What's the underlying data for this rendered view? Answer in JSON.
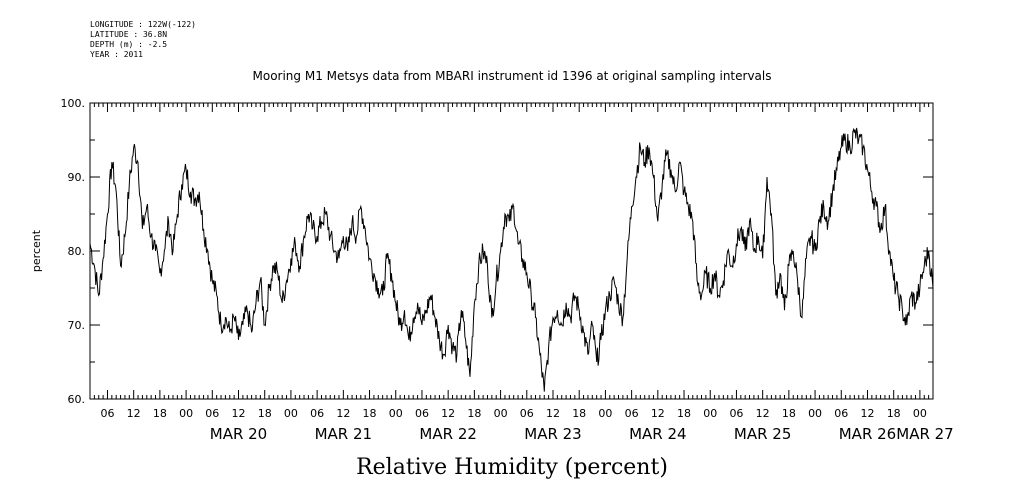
{
  "meta": {
    "longitude": "LONGITUDE : 122W(-122)",
    "latitude": "LATITUDE : 36.8N",
    "depth": "DEPTH (m) : -2.5",
    "year": "YEAR : 2011"
  },
  "chart_data": {
    "type": "line",
    "title": "Mooring M1 Metsys data from MBARI instrument id 1396 at original sampling intervals",
    "xlabel": "Relative Humidity (percent)",
    "ylabel": "percent",
    "ylim": [
      60,
      100
    ],
    "yticks": [
      "60.",
      "70.",
      "80.",
      "90.",
      "100."
    ],
    "xlim": [
      "2011-03-19T02:00",
      "2011-03-27T03:00"
    ],
    "hour_ticks": [
      "06",
      "12",
      "18",
      "00",
      "06",
      "12",
      "18",
      "00",
      "06",
      "12",
      "18",
      "00",
      "06",
      "12",
      "18",
      "00",
      "06",
      "12",
      "18",
      "00",
      "06",
      "12",
      "18",
      "00",
      "06",
      "12",
      "18",
      "00",
      "06",
      "12",
      "18",
      "00"
    ],
    "date_labels": [
      "MAR 20",
      "MAR 21",
      "MAR 22",
      "MAR 23",
      "MAR 24",
      "MAR 25",
      "MAR 26",
      "MAR 27"
    ],
    "grid": false,
    "series": [
      {
        "values": [
          [
            "2011-03-19T02:00",
            81
          ],
          [
            "2011-03-19T03:00",
            78
          ],
          [
            "2011-03-19T04:00",
            74
          ],
          [
            "2011-03-19T05:00",
            79
          ],
          [
            "2011-03-19T06:00",
            85
          ],
          [
            "2011-03-19T07:00",
            92
          ],
          [
            "2011-03-19T08:00",
            88
          ],
          [
            "2011-03-19T09:00",
            78
          ],
          [
            "2011-03-19T10:00",
            82
          ],
          [
            "2011-03-19T11:00",
            89
          ],
          [
            "2011-03-19T12:00",
            94
          ],
          [
            "2011-03-19T13:00",
            92
          ],
          [
            "2011-03-19T14:00",
            83
          ],
          [
            "2011-03-19T15:00",
            86
          ],
          [
            "2011-03-19T16:00",
            82
          ],
          [
            "2011-03-19T17:00",
            80
          ],
          [
            "2011-03-19T18:00",
            77
          ],
          [
            "2011-03-19T19:00",
            80
          ],
          [
            "2011-03-19T20:00",
            84
          ],
          [
            "2011-03-19T21:00",
            80
          ],
          [
            "2011-03-19T22:00",
            85
          ],
          [
            "2011-03-19T23:00",
            89
          ],
          [
            "2011-03-20T00:00",
            91
          ],
          [
            "2011-03-20T01:00",
            88
          ],
          [
            "2011-03-20T02:00",
            87
          ],
          [
            "2011-03-20T03:00",
            88
          ],
          [
            "2011-03-20T04:00",
            83
          ],
          [
            "2011-03-20T05:00",
            80
          ],
          [
            "2011-03-20T06:00",
            76
          ],
          [
            "2011-03-20T07:00",
            74
          ],
          [
            "2011-03-20T08:00",
            70
          ],
          [
            "2011-03-20T09:00",
            71
          ],
          [
            "2011-03-20T10:00",
            69
          ],
          [
            "2011-03-20T11:00",
            71
          ],
          [
            "2011-03-20T12:00",
            68
          ],
          [
            "2011-03-20T13:00",
            70
          ],
          [
            "2011-03-20T14:00",
            72
          ],
          [
            "2011-03-20T15:00",
            69
          ],
          [
            "2011-03-20T16:00",
            73
          ],
          [
            "2011-03-20T17:00",
            76
          ],
          [
            "2011-03-20T18:00",
            70
          ],
          [
            "2011-03-20T19:00",
            75
          ],
          [
            "2011-03-20T20:00",
            78
          ],
          [
            "2011-03-20T21:00",
            77
          ],
          [
            "2011-03-20T22:00",
            73
          ],
          [
            "2011-03-20T23:00",
            76
          ],
          [
            "2011-03-21T00:00",
            79
          ],
          [
            "2011-03-21T01:00",
            81
          ],
          [
            "2011-03-21T02:00",
            78
          ],
          [
            "2011-03-21T03:00",
            82
          ],
          [
            "2011-03-21T04:00",
            85
          ],
          [
            "2011-03-21T05:00",
            83
          ],
          [
            "2011-03-21T06:00",
            82
          ],
          [
            "2011-03-21T07:00",
            84
          ],
          [
            "2011-03-21T08:00",
            85
          ],
          [
            "2011-03-21T09:00",
            82
          ],
          [
            "2011-03-21T10:00",
            80
          ],
          [
            "2011-03-21T11:00",
            79
          ],
          [
            "2011-03-21T12:00",
            82
          ],
          [
            "2011-03-21T13:00",
            80
          ],
          [
            "2011-03-21T14:00",
            84
          ],
          [
            "2011-03-21T15:00",
            82
          ],
          [
            "2011-03-21T16:00",
            86
          ],
          [
            "2011-03-21T17:00",
            83
          ],
          [
            "2011-03-21T18:00",
            79
          ],
          [
            "2011-03-21T19:00",
            77
          ],
          [
            "2011-03-21T20:00",
            75
          ],
          [
            "2011-03-21T21:00",
            74
          ],
          [
            "2011-03-21T22:00",
            79
          ],
          [
            "2011-03-21T23:00",
            77
          ],
          [
            "2011-03-22T00:00",
            73
          ],
          [
            "2011-03-22T01:00",
            70
          ],
          [
            "2011-03-22T02:00",
            72
          ],
          [
            "2011-03-22T03:00",
            68
          ],
          [
            "2011-03-22T04:00",
            71
          ],
          [
            "2011-03-22T05:00",
            73
          ],
          [
            "2011-03-22T06:00",
            70
          ],
          [
            "2011-03-22T07:00",
            72
          ],
          [
            "2011-03-22T08:00",
            74
          ],
          [
            "2011-03-22T09:00",
            71
          ],
          [
            "2011-03-22T10:00",
            68
          ],
          [
            "2011-03-22T11:00",
            66
          ],
          [
            "2011-03-22T12:00",
            70
          ],
          [
            "2011-03-22T13:00",
            67
          ],
          [
            "2011-03-22T14:00",
            66
          ],
          [
            "2011-03-22T15:00",
            72
          ],
          [
            "2011-03-22T16:00",
            68
          ],
          [
            "2011-03-22T17:00",
            63
          ],
          [
            "2011-03-22T18:00",
            73
          ],
          [
            "2011-03-22T19:00",
            78
          ],
          [
            "2011-03-22T20:00",
            80
          ],
          [
            "2011-03-22T21:00",
            78
          ],
          [
            "2011-03-22T22:00",
            71
          ],
          [
            "2011-03-22T23:00",
            76
          ],
          [
            "2011-03-23T00:00",
            80
          ],
          [
            "2011-03-23T01:00",
            85
          ],
          [
            "2011-03-23T02:00",
            84
          ],
          [
            "2011-03-23T03:00",
            86
          ],
          [
            "2011-03-23T04:00",
            81
          ],
          [
            "2011-03-23T05:00",
            79
          ],
          [
            "2011-03-23T06:00",
            77
          ],
          [
            "2011-03-23T07:00",
            74
          ],
          [
            "2011-03-23T08:00",
            71
          ],
          [
            "2011-03-23T09:00",
            66
          ],
          [
            "2011-03-23T10:00",
            61
          ],
          [
            "2011-03-23T11:00",
            67
          ],
          [
            "2011-03-23T12:00",
            71
          ],
          [
            "2011-03-23T13:00",
            72
          ],
          [
            "2011-03-23T14:00",
            70
          ],
          [
            "2011-03-23T15:00",
            73
          ],
          [
            "2011-03-23T16:00",
            71
          ],
          [
            "2011-03-23T17:00",
            74
          ],
          [
            "2011-03-23T18:00",
            72
          ],
          [
            "2011-03-23T19:00",
            69
          ],
          [
            "2011-03-23T20:00",
            66
          ],
          [
            "2011-03-23T21:00",
            70
          ],
          [
            "2011-03-23T22:00",
            65
          ],
          [
            "2011-03-23T23:00",
            68
          ],
          [
            "2011-03-24T00:00",
            72
          ],
          [
            "2011-03-24T01:00",
            74
          ],
          [
            "2011-03-24T02:00",
            76
          ],
          [
            "2011-03-24T03:00",
            73
          ],
          [
            "2011-03-24T04:00",
            71
          ],
          [
            "2011-03-24T05:00",
            79
          ],
          [
            "2011-03-24T06:00",
            86
          ],
          [
            "2011-03-24T07:00",
            90
          ],
          [
            "2011-03-24T08:00",
            94
          ],
          [
            "2011-03-24T09:00",
            92
          ],
          [
            "2011-03-24T10:00",
            94
          ],
          [
            "2011-03-24T11:00",
            90
          ],
          [
            "2011-03-24T12:00",
            84
          ],
          [
            "2011-03-24T13:00",
            89
          ],
          [
            "2011-03-24T14:00",
            93
          ],
          [
            "2011-03-24T15:00",
            91
          ],
          [
            "2011-03-24T16:00",
            88
          ],
          [
            "2011-03-24T17:00",
            92
          ],
          [
            "2011-03-24T18:00",
            88
          ],
          [
            "2011-03-24T19:00",
            86
          ],
          [
            "2011-03-24T20:00",
            84
          ],
          [
            "2011-03-24T21:00",
            76
          ],
          [
            "2011-03-24T22:00",
            74
          ],
          [
            "2011-03-24T23:00",
            77
          ],
          [
            "2011-03-25T00:00",
            75
          ],
          [
            "2011-03-25T01:00",
            77
          ],
          [
            "2011-03-25T02:00",
            74
          ],
          [
            "2011-03-25T03:00",
            76
          ],
          [
            "2011-03-25T04:00",
            80
          ],
          [
            "2011-03-25T05:00",
            78
          ],
          [
            "2011-03-25T06:00",
            81
          ],
          [
            "2011-03-25T07:00",
            83
          ],
          [
            "2011-03-25T08:00",
            80
          ],
          [
            "2011-03-25T09:00",
            84
          ],
          [
            "2011-03-25T10:00",
            80
          ],
          [
            "2011-03-25T11:00",
            82
          ],
          [
            "2011-03-25T12:00",
            79
          ],
          [
            "2011-03-25T13:00",
            90
          ],
          [
            "2011-03-25T14:00",
            85
          ],
          [
            "2011-03-25T15:00",
            74
          ],
          [
            "2011-03-25T16:00",
            77
          ],
          [
            "2011-03-25T17:00",
            72
          ],
          [
            "2011-03-25T18:00",
            78
          ],
          [
            "2011-03-25T19:00",
            80
          ],
          [
            "2011-03-25T20:00",
            76
          ],
          [
            "2011-03-25T21:00",
            71
          ],
          [
            "2011-03-25T22:00",
            79
          ],
          [
            "2011-03-25T23:00",
            82
          ],
          [
            "2011-03-26T00:00",
            80
          ],
          [
            "2011-03-26T01:00",
            84
          ],
          [
            "2011-03-26T02:00",
            86
          ],
          [
            "2011-03-26T03:00",
            84
          ],
          [
            "2011-03-26T04:00",
            88
          ],
          [
            "2011-03-26T05:00",
            91
          ],
          [
            "2011-03-26T06:00",
            94
          ],
          [
            "2011-03-26T07:00",
            95
          ],
          [
            "2011-03-26T08:00",
            94
          ],
          [
            "2011-03-26T09:00",
            96
          ],
          [
            "2011-03-26T10:00",
            95
          ],
          [
            "2011-03-26T11:00",
            94
          ],
          [
            "2011-03-26T12:00",
            91
          ],
          [
            "2011-03-26T13:00",
            88
          ],
          [
            "2011-03-26T14:00",
            86
          ],
          [
            "2011-03-26T15:00",
            83
          ],
          [
            "2011-03-26T16:00",
            86
          ],
          [
            "2011-03-26T17:00",
            80
          ],
          [
            "2011-03-26T18:00",
            76
          ],
          [
            "2011-03-26T19:00",
            74
          ],
          [
            "2011-03-26T20:00",
            72
          ],
          [
            "2011-03-26T21:00",
            70
          ],
          [
            "2011-03-26T22:00",
            74
          ],
          [
            "2011-03-26T23:00",
            73
          ],
          [
            "2011-03-27T00:00",
            75
          ],
          [
            "2011-03-27T01:00",
            78
          ],
          [
            "2011-03-27T02:00",
            80
          ],
          [
            "2011-03-27T03:00",
            75
          ]
        ]
      }
    ]
  }
}
